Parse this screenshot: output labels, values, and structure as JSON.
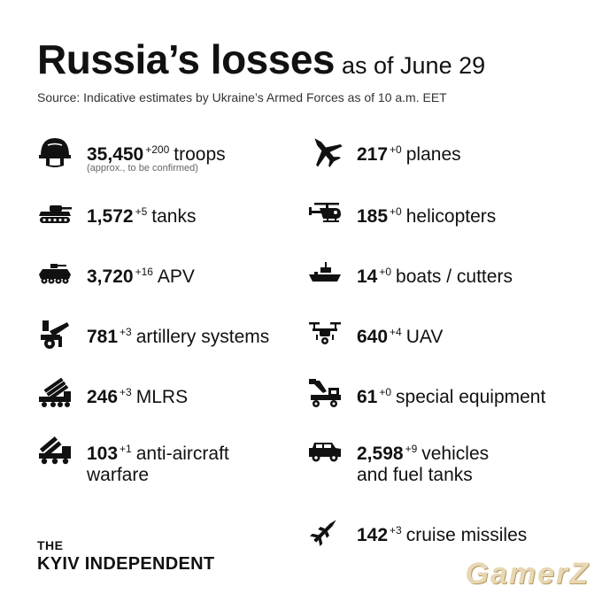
{
  "header": {
    "title": "Russia’s losses",
    "subtitle": "as of June 29",
    "source": "Source: Indicative estimates by Ukraine’s Armed Forces as of 10 a.m. EET"
  },
  "left": [
    {
      "icon": "helmet-icon",
      "value": "35,450",
      "delta": "+200",
      "label": "troops",
      "note": "(approx., to be confirmed)"
    },
    {
      "icon": "tank-icon",
      "value": "1,572",
      "delta": "+5",
      "label": "tanks"
    },
    {
      "icon": "apv-icon",
      "value": "3,720",
      "delta": "+16",
      "label": "APV"
    },
    {
      "icon": "artillery-icon",
      "value": "781",
      "delta": "+3",
      "label": "artillery systems"
    },
    {
      "icon": "mlrs-icon",
      "value": "246",
      "delta": "+3",
      "label": "MLRS"
    },
    {
      "icon": "anti-aircraft-icon",
      "value": "103",
      "delta": "+1",
      "label": "anti-aircraft",
      "label2": "warfare"
    }
  ],
  "right": [
    {
      "icon": "plane-icon",
      "value": "217",
      "delta": "+0",
      "label": "planes"
    },
    {
      "icon": "helicopter-icon",
      "value": "185",
      "delta": "+0",
      "label": "helicopters"
    },
    {
      "icon": "boat-icon",
      "value": "14",
      "delta": "+0",
      "label": "boats / cutters"
    },
    {
      "icon": "drone-icon",
      "value": "640",
      "delta": "+4",
      "label": "UAV"
    },
    {
      "icon": "special-equipment-icon",
      "value": "61",
      "delta": "+0",
      "label": "special equipment"
    },
    {
      "icon": "vehicle-icon",
      "value": "2,598",
      "delta": "+9",
      "label": "vehicles",
      "label2": "and fuel tanks"
    },
    {
      "icon": "cruise-missile-icon",
      "value": "142",
      "delta": "+3",
      "label": "cruise missiles"
    }
  ],
  "logo": {
    "line1": "THE",
    "line2": "KYIV INDEPENDENT"
  },
  "watermark": "GamerZ"
}
